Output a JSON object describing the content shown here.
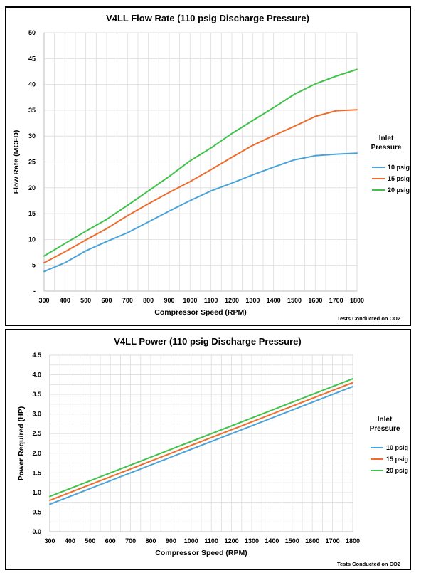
{
  "chart_data": [
    {
      "type": "line",
      "title": "V4LL  Flow Rate (110 psig Discharge Pressure)",
      "xlabel": "Compressor Speed (RPM)",
      "ylabel": "Flow Rate (MCFD)",
      "x": [
        300,
        400,
        500,
        600,
        700,
        800,
        900,
        1000,
        1100,
        1200,
        1300,
        1400,
        1500,
        1600,
        1700,
        1800
      ],
      "xlim": [
        300,
        1800
      ],
      "ylim": [
        0,
        50
      ],
      "yticks": [
        0,
        5,
        10,
        15,
        20,
        25,
        30,
        35,
        40,
        45,
        50
      ],
      "ytick_labels": [
        "-",
        "5",
        "10",
        "15",
        "20",
        "25",
        "30",
        "35",
        "40",
        "45",
        "50"
      ],
      "grid": true,
      "legend_title": "Inlet Pressure",
      "legend_position": "right",
      "series": [
        {
          "name": "10 psig",
          "color": "#4aa3d8",
          "values": [
            3.8,
            5.5,
            7.8,
            9.6,
            11.3,
            13.4,
            15.5,
            17.5,
            19.4,
            20.9,
            22.5,
            24.0,
            25.4,
            26.2,
            26.5,
            26.7
          ]
        },
        {
          "name": "15 psig",
          "color": "#ee6d2c",
          "values": [
            5.5,
            7.6,
            9.9,
            12.1,
            14.6,
            16.9,
            19.1,
            21.2,
            23.5,
            25.9,
            28.2,
            30.1,
            31.9,
            33.8,
            34.9,
            35.1
          ]
        },
        {
          "name": "20 psig",
          "color": "#3ec24a",
          "values": [
            6.8,
            9.2,
            11.6,
            13.9,
            16.6,
            19.4,
            22.2,
            25.2,
            27.7,
            30.5,
            33.0,
            35.5,
            38.1,
            40.1,
            41.6,
            42.9
          ]
        }
      ],
      "note": "Tests Conducted on CO2"
    },
    {
      "type": "line",
      "title": "V4LL Power (110 psig Discharge Pressure)",
      "xlabel": "Compressor Speed (RPM)",
      "ylabel": "Power Required (HP)",
      "x": [
        300,
        1800
      ],
      "xticks": [
        300,
        400,
        500,
        600,
        700,
        800,
        900,
        1000,
        1100,
        1200,
        1300,
        1400,
        1500,
        1600,
        1700,
        1800
      ],
      "xlim": [
        300,
        1800
      ],
      "ylim": [
        0,
        4.5
      ],
      "yticks": [
        0,
        0.5,
        1,
        1.5,
        2,
        2.5,
        3,
        3.5,
        4,
        4.5
      ],
      "ytick_labels": [
        "0.0",
        "0.5",
        "1.0",
        "1.5",
        "2.0",
        "2.5",
        "3.0",
        "3.5",
        "4.0",
        "4.5"
      ],
      "grid": true,
      "legend_title": "Inlet Pressure",
      "legend_position": "right",
      "series": [
        {
          "name": "10 psig",
          "color": "#4aa3d8",
          "values": [
            0.7,
            3.7
          ]
        },
        {
          "name": "15 psig",
          "color": "#ee6d2c",
          "values": [
            0.8,
            3.8
          ]
        },
        {
          "name": "20 psig",
          "color": "#3ec24a",
          "values": [
            0.9,
            3.9
          ]
        }
      ],
      "note": "Tests Conducted on CO2"
    }
  ]
}
